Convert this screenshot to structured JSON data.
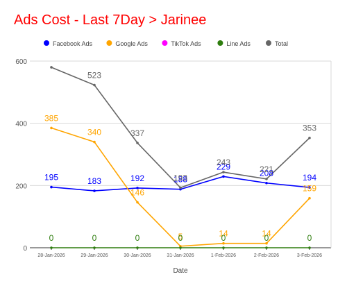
{
  "chart_data": {
    "type": "line",
    "title": "Ads Cost - Last 7Day > Jarinee",
    "xlabel": "Date",
    "ylabel": "",
    "categories": [
      "28-Jan-2026",
      "29-Jan-2026",
      "30-Jan-2026",
      "31-Jan-2026",
      "1-Feb-2026",
      "2-Feb-2026",
      "3-Feb-2026"
    ],
    "ylim": [
      0,
      600
    ],
    "yticks": [
      "0",
      "200",
      "400",
      "600"
    ],
    "grid": true,
    "legend_position": "top",
    "series": [
      {
        "name": "Facebook Ads",
        "color": "#0000ff",
        "values": [
          195,
          183,
          192,
          188,
          229,
          208,
          194
        ],
        "labels": [
          "195",
          "183",
          "192",
          "188",
          "229",
          "208",
          "194"
        ]
      },
      {
        "name": "Google Ads",
        "color": "#ffa500",
        "values": [
          385,
          340,
          146,
          5,
          14,
          14,
          159
        ],
        "labels": [
          "385",
          "340",
          "146",
          "5",
          "14",
          "14",
          "159"
        ]
      },
      {
        "name": "TikTok Ads",
        "color": "#ff00ff",
        "values": [
          null,
          null,
          null,
          null,
          null,
          null,
          null
        ],
        "labels": []
      },
      {
        "name": "Line Ads",
        "color": "#2e7d0e",
        "values": [
          0,
          0,
          0,
          0,
          0,
          0,
          0
        ],
        "labels": [
          "0",
          "0",
          "0",
          "0",
          "0",
          "0",
          "0"
        ]
      },
      {
        "name": "Total",
        "color": "#666666",
        "values": [
          580,
          523,
          337,
          193,
          243,
          221,
          353
        ],
        "labels": [
          "",
          "523",
          "337",
          "193",
          "243",
          "221",
          "353"
        ]
      }
    ]
  }
}
